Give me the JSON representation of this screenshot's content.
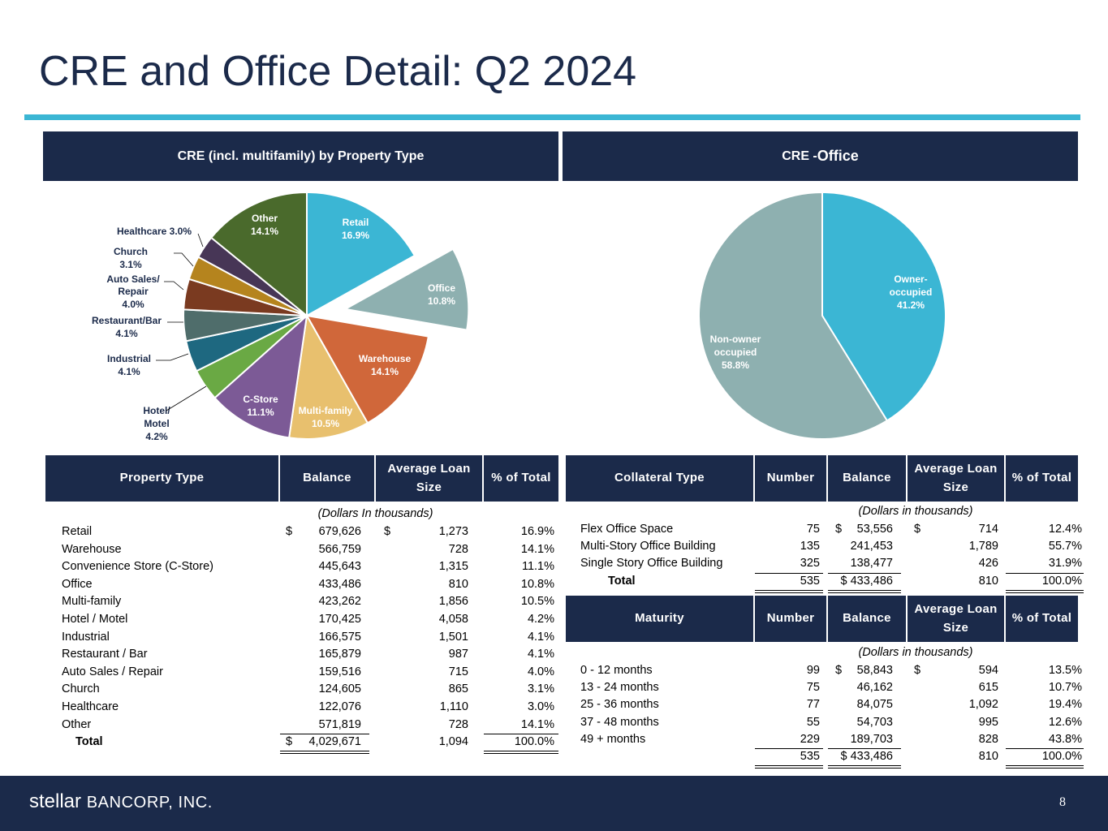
{
  "page": {
    "title": "CRE and Office Detail: Q2 2024",
    "page_number": "8",
    "footer_logo_word": "stellar",
    "footer_logo_rest": "BANCORP, INC."
  },
  "banners": {
    "left": "CRE (incl. multifamily) by Property Type",
    "right_prefix": "CRE - ",
    "right_main": "Office"
  },
  "colors": {
    "navy": "#1b2a4a",
    "accent": "#3bb6d4"
  },
  "chart_data": [
    {
      "type": "pie",
      "title": "CRE (incl. multifamily) by Property Type",
      "slices": [
        {
          "label": "Retail",
          "value": 16.9,
          "display": "16.9%",
          "color": "#3bb6d4"
        },
        {
          "label": "Office",
          "value": 10.8,
          "display": "10.8%",
          "color": "#8eb0b0",
          "exploded": true
        },
        {
          "label": "Warehouse",
          "value": 14.1,
          "display": "14.1%",
          "color": "#d0673a"
        },
        {
          "label": "Multi-family",
          "value": 10.5,
          "display": "10.5%",
          "color": "#e8c06e"
        },
        {
          "label": "C-Store",
          "value": 11.1,
          "display": "11.1%",
          "color": "#7c5a96"
        },
        {
          "label": "Hotel/ Motel",
          "value": 4.2,
          "display": "4.2%",
          "color": "#6aa944"
        },
        {
          "label": "Industrial",
          "value": 4.1,
          "display": "4.1%",
          "color": "#1e6880"
        },
        {
          "label": "Restaurant/Bar",
          "value": 4.1,
          "display": "4.1%",
          "color": "#4f6d6b"
        },
        {
          "label": "Auto Sales/ Repair",
          "value": 4.0,
          "display": "4.0%",
          "color": "#7a3a20"
        },
        {
          "label": "Church",
          "value": 3.1,
          "display": "3.1%",
          "color": "#b5841e"
        },
        {
          "label": "Healthcare",
          "value": 3.0,
          "display": "3.0%",
          "color": "#473656"
        },
        {
          "label": "Other",
          "value": 14.1,
          "display": "14.1%",
          "color": "#4a6a2c"
        }
      ]
    },
    {
      "type": "pie",
      "title": "CRE - Office",
      "slices": [
        {
          "label": "Owner- occupied",
          "value": 41.2,
          "display": "41.2%",
          "color": "#3bb6d4"
        },
        {
          "label": "Non-owner occupied",
          "value": 58.8,
          "display": "58.8%",
          "color": "#8eb0b0"
        }
      ]
    }
  ],
  "property_table": {
    "headers": [
      "Property Type",
      "Balance",
      "Average Loan Size",
      "% of Total"
    ],
    "note": "(Dollars In thousands)",
    "dollar_sign": "$",
    "rows": [
      {
        "type": "Retail",
        "balance": "679,626",
        "avg": "1,273",
        "pct": "16.9%"
      },
      {
        "type": "Warehouse",
        "balance": "566,759",
        "avg": "728",
        "pct": "14.1%"
      },
      {
        "type": "Convenience Store (C-Store)",
        "balance": "445,643",
        "avg": "1,315",
        "pct": "11.1%"
      },
      {
        "type": "Office",
        "balance": "433,486",
        "avg": "810",
        "pct": "10.8%"
      },
      {
        "type": "Multi-family",
        "balance": "423,262",
        "avg": "1,856",
        "pct": "10.5%"
      },
      {
        "type": "Hotel / Motel",
        "balance": "170,425",
        "avg": "4,058",
        "pct": "4.2%"
      },
      {
        "type": "Industrial",
        "balance": "166,575",
        "avg": "1,501",
        "pct": "4.1%"
      },
      {
        "type": "Restaurant / Bar",
        "balance": "165,879",
        "avg": "987",
        "pct": "4.1%"
      },
      {
        "type": "Auto Sales / Repair",
        "balance": "159,516",
        "avg": "715",
        "pct": "4.0%"
      },
      {
        "type": "Church",
        "balance": "124,605",
        "avg": "865",
        "pct": "3.1%"
      },
      {
        "type": "Healthcare",
        "balance": "122,076",
        "avg": "1,110",
        "pct": "3.0%"
      },
      {
        "type": "Other",
        "balance": "571,819",
        "avg": "728",
        "pct": "14.1%"
      }
    ],
    "total": {
      "label": "Total",
      "balance": "4,029,671",
      "avg": "1,094",
      "pct": "100.0%"
    }
  },
  "collateral_table": {
    "headers": [
      "Collateral Type",
      "Number",
      "Balance",
      "Average Loan Size",
      "% of Total"
    ],
    "note": "(Dollars in thousands)",
    "dollar_sign": "$",
    "rows": [
      {
        "type": "Flex Office Space",
        "number": "75",
        "balance": "53,556",
        "avg": "714",
        "pct": "12.4%"
      },
      {
        "type": "Multi-Story Office Building",
        "number": "135",
        "balance": "241,453",
        "avg": "1,789",
        "pct": "55.7%"
      },
      {
        "type": "Single Story Office Building",
        "number": "325",
        "balance": "138,477",
        "avg": "426",
        "pct": "31.9%"
      }
    ],
    "total": {
      "label": "Total",
      "number": "535",
      "balance": "$ 433,486",
      "avg": "810",
      "pct": "100.0%"
    }
  },
  "maturity_table": {
    "headers": [
      "Maturity",
      "Number",
      "Balance",
      "Average Loan Size",
      "% of Total"
    ],
    "note": "(Dollars in thousands)",
    "dollar_sign": "$",
    "rows": [
      {
        "type": "0 - 12 months",
        "number": "99",
        "balance": "58,843",
        "avg": "594",
        "pct": "13.5%"
      },
      {
        "type": "13 - 24 months",
        "number": "75",
        "balance": "46,162",
        "avg": "615",
        "pct": "10.7%"
      },
      {
        "type": "25 - 36 months",
        "number": "77",
        "balance": "84,075",
        "avg": "1,092",
        "pct": "19.4%"
      },
      {
        "type": "37 - 48 months",
        "number": "55",
        "balance": "54,703",
        "avg": "995",
        "pct": "12.6%"
      },
      {
        "type": "49 + months",
        "number": "229",
        "balance": "189,703",
        "avg": "828",
        "pct": "43.8%"
      }
    ],
    "total": {
      "number": "535",
      "balance": "$ 433,486",
      "avg": "810",
      "pct": "100.0%"
    }
  }
}
